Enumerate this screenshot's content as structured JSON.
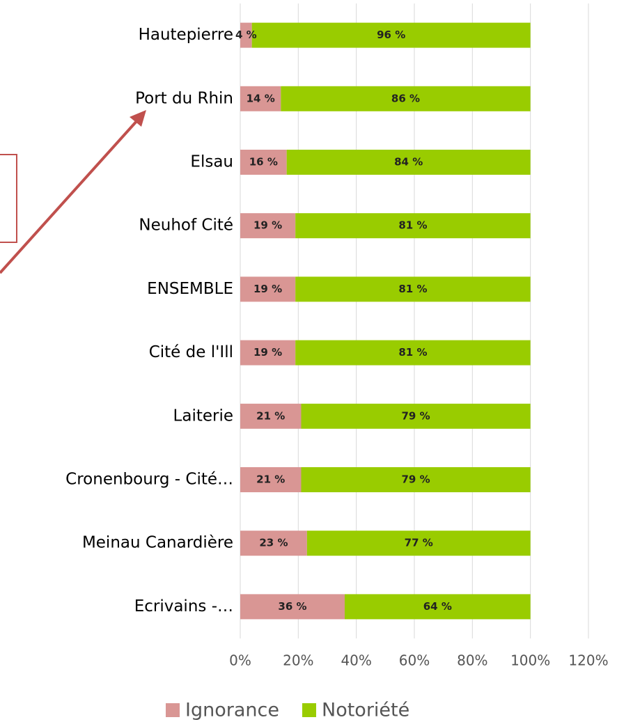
{
  "chart_data": {
    "type": "stacked_bar_horizontal",
    "categories": [
      "Hautepierre",
      "Port du Rhin",
      "Elsau",
      "Neuhof Cité",
      "ENSEMBLE",
      "Cité de l'Ill",
      "Laiterie",
      "Cronenbourg - Cité…",
      "Meinau Canardière",
      "Ecrivains -…"
    ],
    "series": [
      {
        "name": "Ignorance",
        "color": "#d99694",
        "values": [
          4,
          14,
          16,
          19,
          19,
          19,
          21,
          21,
          23,
          36
        ],
        "value_labels": [
          "4 %",
          "14 %",
          "16 %",
          "19 %",
          "19 %",
          "19 %",
          "21 %",
          "21 %",
          "23 %",
          "36 %"
        ]
      },
      {
        "name": "Notoriété",
        "color": "#99cc00",
        "values": [
          96,
          86,
          84,
          81,
          81,
          81,
          79,
          79,
          77,
          64
        ],
        "value_labels": [
          "96 %",
          "86 %",
          "84 %",
          "81 %",
          "81 %",
          "81 %",
          "79 %",
          "79 %",
          "77 %",
          "64 %"
        ]
      }
    ],
    "xlim": [
      0,
      120
    ],
    "xticks": [
      {
        "value": 0,
        "label": "0%"
      },
      {
        "value": 20,
        "label": "20%"
      },
      {
        "value": 40,
        "label": "40%"
      },
      {
        "value": 60,
        "label": "60%"
      },
      {
        "value": 80,
        "label": "80%"
      },
      {
        "value": 100,
        "label": "100%"
      },
      {
        "value": 120,
        "label": "120%"
      }
    ],
    "grid": true,
    "legend": "bottom"
  }
}
